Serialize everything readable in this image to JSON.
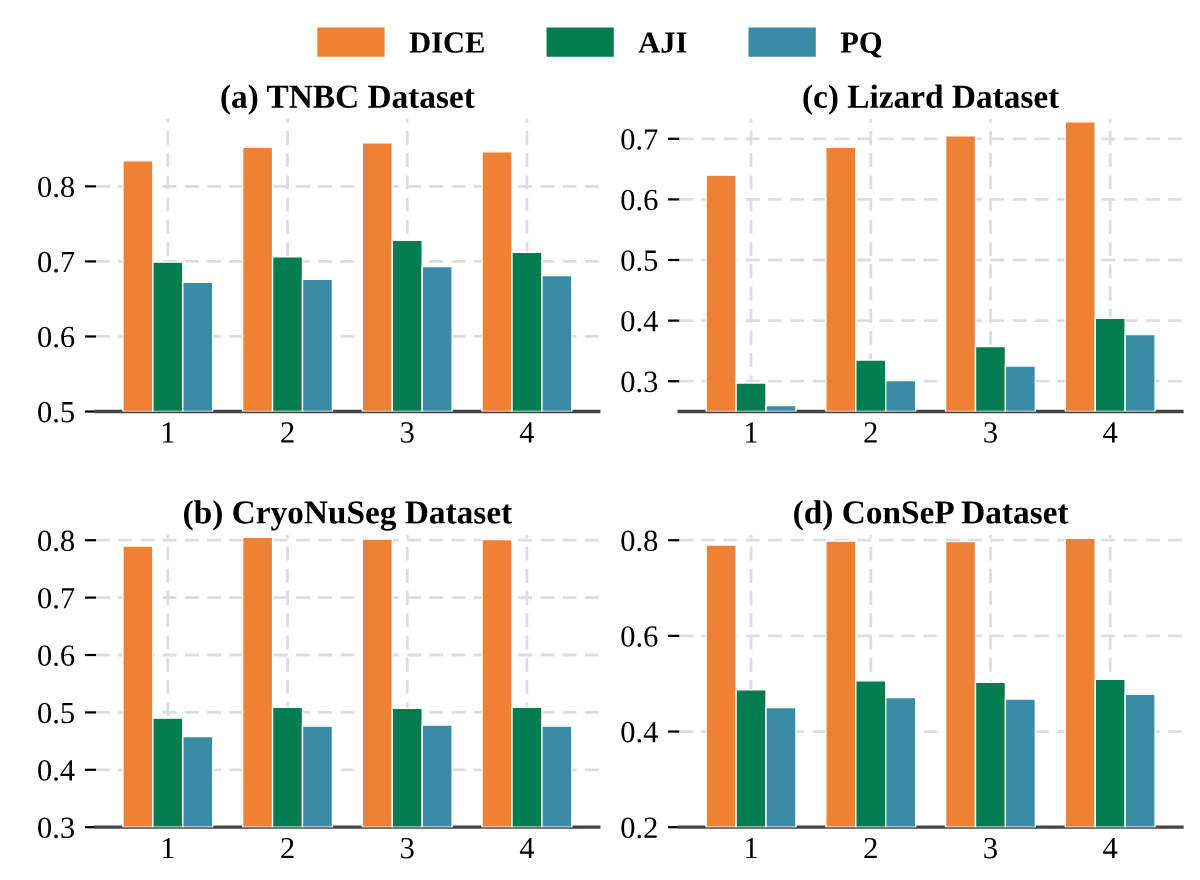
{
  "chart_data": [
    {
      "type": "bar",
      "title": "(a) TNBC Dataset",
      "categories": [
        "1",
        "2",
        "3",
        "4"
      ],
      "ylim": [
        0.5,
        0.89
      ],
      "yticks": [
        0.5,
        0.6,
        0.7,
        0.8
      ],
      "grid": true,
      "legend": "top",
      "series": [
        {
          "name": "DICE",
          "color": "#ee8133",
          "values": [
            0.834,
            0.852,
            0.858,
            0.846
          ]
        },
        {
          "name": "AJI",
          "color": "#037d50",
          "values": [
            0.699,
            0.706,
            0.728,
            0.712
          ]
        },
        {
          "name": "PQ",
          "color": "#3a8ba5",
          "values": [
            0.672,
            0.676,
            0.693,
            0.681
          ]
        }
      ]
    },
    {
      "type": "bar",
      "title": "(c) Lizard Dataset",
      "categories": [
        "1",
        "2",
        "3",
        "4"
      ],
      "ylim": [
        0.25,
        0.733
      ],
      "yticks": [
        0.3,
        0.4,
        0.5,
        0.6,
        0.7
      ],
      "grid": true,
      "legend": "top",
      "series": [
        {
          "name": "DICE",
          "color": "#ee8133",
          "values": [
            0.64,
            0.686,
            0.705,
            0.728
          ]
        },
        {
          "name": "AJI",
          "color": "#037d50",
          "values": [
            0.297,
            0.335,
            0.357,
            0.404
          ]
        },
        {
          "name": "PQ",
          "color": "#3a8ba5",
          "values": [
            0.26,
            0.301,
            0.325,
            0.377
          ]
        }
      ]
    },
    {
      "type": "bar",
      "title": "(b) CryoNuSeg Dataset",
      "categories": [
        "1",
        "2",
        "3",
        "4"
      ],
      "ylim": [
        0.3,
        0.81
      ],
      "yticks": [
        0.3,
        0.4,
        0.5,
        0.6,
        0.7,
        0.8
      ],
      "grid": true,
      "legend": "top",
      "series": [
        {
          "name": "DICE",
          "color": "#ee8133",
          "values": [
            0.79,
            0.805,
            0.802,
            0.801
          ]
        },
        {
          "name": "AJI",
          "color": "#037d50",
          "values": [
            0.49,
            0.509,
            0.507,
            0.509
          ]
        },
        {
          "name": "PQ",
          "color": "#3a8ba5",
          "values": [
            0.458,
            0.476,
            0.478,
            0.476
          ]
        }
      ]
    },
    {
      "type": "bar",
      "title": "(d) ConSeP Dataset",
      "categories": [
        "1",
        "2",
        "3",
        "4"
      ],
      "ylim": [
        0.2,
        0.812
      ],
      "yticks": [
        0.2,
        0.4,
        0.6,
        0.8
      ],
      "grid": true,
      "legend": "top",
      "series": [
        {
          "name": "DICE",
          "color": "#ee8133",
          "values": [
            0.79,
            0.798,
            0.797,
            0.804
          ]
        },
        {
          "name": "AJI",
          "color": "#037d50",
          "values": [
            0.487,
            0.506,
            0.503,
            0.509
          ]
        },
        {
          "name": "PQ",
          "color": "#3a8ba5",
          "values": [
            0.45,
            0.471,
            0.468,
            0.478
          ]
        }
      ]
    }
  ]
}
